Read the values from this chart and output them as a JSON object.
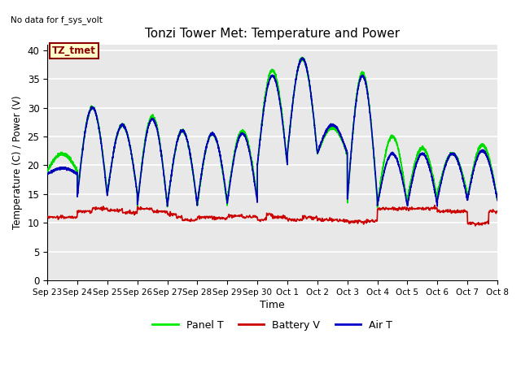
{
  "title": "Tonzi Tower Met: Temperature and Power",
  "top_left_text": "No data for f_sys_volt",
  "xlabel": "Time",
  "ylabel": "Temperature (C) / Power (V)",
  "ylim": [
    0,
    41
  ],
  "yticks": [
    0,
    5,
    10,
    15,
    20,
    25,
    30,
    35,
    40
  ],
  "xtick_labels": [
    "Sep 23",
    "Sep 24",
    "Sep 25",
    "Sep 26",
    "Sep 27",
    "Sep 28",
    "Sep 29",
    "Sep 30",
    "Oct 1",
    "Oct 2",
    "Oct 3",
    "Oct 4",
    "Oct 5",
    "Oct 6",
    "Oct 7",
    "Oct 8"
  ],
  "legend_entries": [
    "Panel T",
    "Battery V",
    "Air T"
  ],
  "legend_colors": [
    "#00ee00",
    "#cc0000",
    "#0000cc"
  ],
  "inset_label": "TZ_tmet",
  "inset_bg": "#ffffcc",
  "inset_border": "#8b0000",
  "background_color": "#e8e8e8",
  "grid_color": "#ffffff",
  "panel_t_color": "#00dd00",
  "battery_v_color": "#cc0000",
  "air_t_color": "#0000bb",
  "figsize": [
    6.4,
    4.8
  ],
  "dpi": 100
}
